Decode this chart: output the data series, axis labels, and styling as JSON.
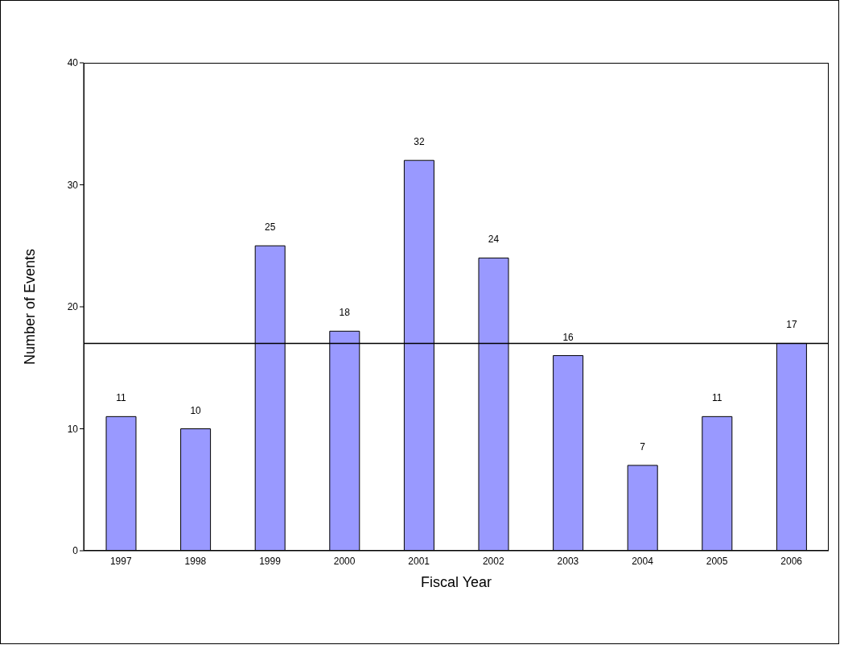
{
  "chart_data": {
    "type": "bar",
    "xlabel": "Fiscal Year",
    "ylabel": "Number of Events",
    "categories": [
      "1997",
      "1998",
      "1999",
      "2000",
      "2001",
      "2002",
      "2003",
      "2004",
      "2005",
      "2006"
    ],
    "values": [
      11,
      10,
      25,
      18,
      32,
      24,
      16,
      7,
      11,
      17
    ],
    "color": "#9999ff",
    "ylim": [
      0,
      40
    ],
    "yticks": [
      0,
      10,
      20,
      30,
      40
    ],
    "grid": false,
    "data_labels": true,
    "ref_lines": [
      {
        "axis": "y",
        "value": 17,
        "color": "#000000"
      }
    ]
  }
}
